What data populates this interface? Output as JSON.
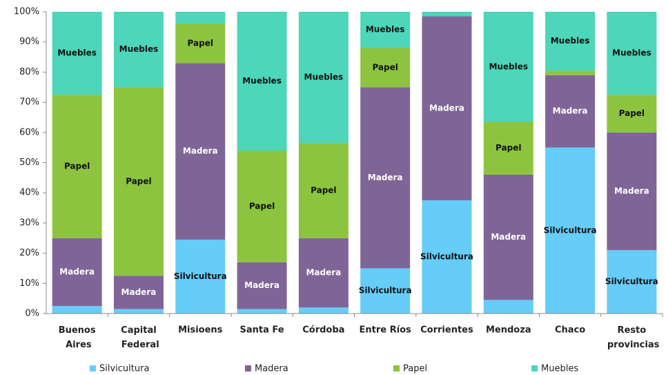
{
  "chart_data": {
    "type": "stacked_bar_100",
    "categories": [
      "Buenos Aires",
      "Capital Federal",
      "Misioens",
      "Santa Fe",
      "Córdoba",
      "Entre Ríos",
      "Corrientes",
      "Mendoza",
      "Chaco",
      "Resto provincias"
    ],
    "series": [
      {
        "name": "Silvicultura",
        "color": "#66ccf8",
        "values": [
          2.5,
          1.5,
          24.5,
          1.5,
          2,
          15,
          37.5,
          4.5,
          55,
          21
        ]
      },
      {
        "name": "Madera",
        "color": "#7f6597",
        "values": [
          22.5,
          11,
          58.5,
          15.5,
          23,
          60,
          61,
          41.5,
          24,
          39
        ]
      },
      {
        "name": "Papel",
        "color": "#8dc43f",
        "values": [
          47.5,
          62.5,
          13,
          37,
          31.5,
          13,
          0,
          17.5,
          1.5,
          12.5
        ]
      },
      {
        "name": "Muebles",
        "color": "#4dd6b9",
        "values": [
          27.5,
          25,
          4,
          46,
          43.5,
          12,
          1.5,
          36.5,
          19.5,
          27.5
        ]
      }
    ],
    "ylim": [
      0,
      100
    ],
    "yticks": [
      {
        "value": 0,
        "label": "0%"
      },
      {
        "value": 10,
        "label": "10%"
      },
      {
        "value": 20,
        "label": "20%"
      },
      {
        "value": 30,
        "label": "30%"
      },
      {
        "value": 40,
        "label": "40%"
      },
      {
        "value": 50,
        "label": "50%"
      },
      {
        "value": 60,
        "label": "60%"
      },
      {
        "value": 70,
        "label": "70%"
      },
      {
        "value": 80,
        "label": "80%"
      },
      {
        "value": 90,
        "label": "90%"
      },
      {
        "value": 100,
        "label": "100%"
      }
    ],
    "grid": false,
    "legend": "bottom"
  }
}
